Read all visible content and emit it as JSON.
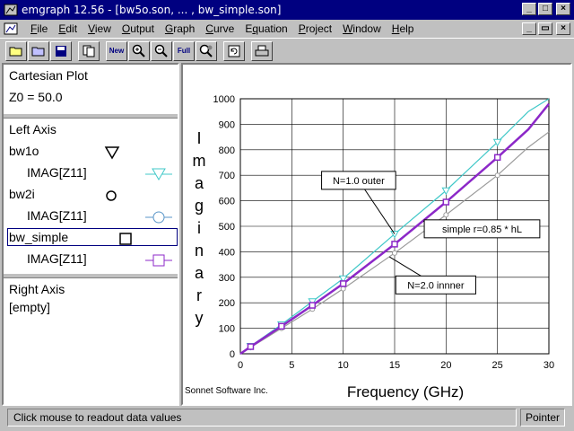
{
  "window": {
    "title": "emgraph 12.56 - [bw5o.son, ... , bw_simple.son]"
  },
  "menu": [
    {
      "pre": "",
      "ul": "F",
      "post": "ile"
    },
    {
      "pre": "",
      "ul": "E",
      "post": "dit"
    },
    {
      "pre": "",
      "ul": "V",
      "post": "iew"
    },
    {
      "pre": "",
      "ul": "O",
      "post": "utput"
    },
    {
      "pre": "",
      "ul": "G",
      "post": "raph"
    },
    {
      "pre": "",
      "ul": "C",
      "post": "urve"
    },
    {
      "pre": "E",
      "ul": "q",
      "post": "uation"
    },
    {
      "pre": "",
      "ul": "P",
      "post": "roject"
    },
    {
      "pre": "",
      "ul": "W",
      "post": "indow"
    },
    {
      "pre": "",
      "ul": "H",
      "post": "elp"
    }
  ],
  "toolbar": {
    "new_label": "New",
    "full_label": "Full"
  },
  "left_panel": {
    "plot_type": "Cartesian Plot",
    "z0": "Z0 = 50.0",
    "left_axis_title": "Left Axis",
    "traces": [
      {
        "name": "bw1o",
        "sub": "IMAG[Z11]",
        "symbol": "triangle",
        "color": "#40c8c8"
      },
      {
        "name": "bw2i",
        "sub": "IMAG[Z11]",
        "symbol": "circle",
        "color": "#5a96c8"
      },
      {
        "name": "bw_simple",
        "sub": "IMAG[Z11]",
        "symbol": "square",
        "color": "#8c28c8"
      }
    ],
    "right_axis_title": "Right Axis",
    "right_axis_value": "[empty]"
  },
  "plot": {
    "ylabel": "Imaginary",
    "xlabel": "Frequency (GHz)",
    "footer": "Sonnet Software Inc."
  },
  "chart_data": {
    "type": "line",
    "xlim": [
      0,
      30
    ],
    "ylim": [
      0,
      1000
    ],
    "x_ticks": [
      0,
      5,
      10,
      15,
      20,
      25,
      30
    ],
    "y_ticks": [
      0,
      100,
      200,
      300,
      400,
      500,
      600,
      700,
      800,
      900,
      1000
    ],
    "grid": true,
    "series": [
      {
        "name": "N=1.0 outer",
        "color": "#40c8c8",
        "marker": "triangle",
        "x": [
          0,
          1,
          4,
          7,
          10,
          15,
          20,
          25,
          28,
          30
        ],
        "y": [
          0,
          30,
          115,
          205,
          295,
          470,
          640,
          830,
          950,
          1000
        ]
      },
      {
        "name": "N=2.0 innner",
        "color": "#9a9a9a",
        "marker": "circle",
        "x": [
          0,
          1,
          4,
          7,
          10,
          15,
          20,
          25,
          28,
          30
        ],
        "y": [
          0,
          25,
          100,
          175,
          255,
          395,
          545,
          700,
          810,
          870
        ]
      },
      {
        "name": "simple r=0.85 * hL",
        "color": "#8c28c8",
        "marker": "square",
        "x": [
          0,
          1,
          4,
          7,
          10,
          15,
          20,
          25,
          28,
          30
        ],
        "y": [
          0,
          28,
          108,
          190,
          275,
          430,
          595,
          770,
          880,
          980
        ]
      }
    ],
    "annotations": [
      {
        "text": "N=1.0 outer",
        "x": 11.5,
        "y": 680,
        "target_x": 15,
        "target_y": 470
      },
      {
        "text": "simple r=0.85 * hL",
        "x": 23.5,
        "y": 490,
        "target_x": 17.8,
        "target_y": 520
      },
      {
        "text": "N=2.0 innner",
        "x": 19,
        "y": 270,
        "target_x": 14.5,
        "target_y": 380
      }
    ]
  },
  "status": {
    "message": "Click mouse to readout data values",
    "mode": "Pointer"
  }
}
